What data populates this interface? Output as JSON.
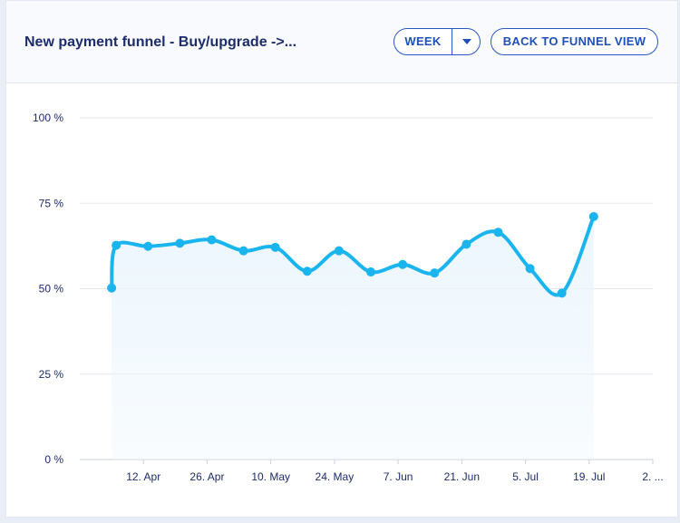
{
  "header": {
    "title": "New payment funnel - Buy/upgrade ->...",
    "period_select": {
      "value": "WEEK"
    },
    "back_button_label": "BACK TO FUNNEL VIEW"
  },
  "colors": {
    "line": "#1ab4ee",
    "area_fill": "#ecf6fd",
    "grid": "#e3e7ee",
    "axis_text": "#1d2c6b",
    "button": "#1f4fb8"
  },
  "chart_data": {
    "type": "line",
    "title": "",
    "xlabel": "",
    "ylabel": "",
    "ylim": [
      0,
      100
    ],
    "y_ticks": [
      {
        "value": 0,
        "label": "0 %"
      },
      {
        "value": 25,
        "label": "25 %"
      },
      {
        "value": 50,
        "label": "50 %"
      },
      {
        "value": 75,
        "label": "75 %"
      },
      {
        "value": 100,
        "label": "100 %"
      }
    ],
    "x_range": [
      "2021-03-29",
      "2021-08-02"
    ],
    "x_ticks": [
      {
        "date": "2021-04-12",
        "label": "12. Apr"
      },
      {
        "date": "2021-04-26",
        "label": "26. Apr"
      },
      {
        "date": "2021-05-10",
        "label": "10. May"
      },
      {
        "date": "2021-05-24",
        "label": "24. May"
      },
      {
        "date": "2021-06-07",
        "label": "7. Jun"
      },
      {
        "date": "2021-06-21",
        "label": "21. Jun"
      },
      {
        "date": "2021-07-05",
        "label": "5. Jul"
      },
      {
        "date": "2021-07-19",
        "label": "19. Jul"
      },
      {
        "date": "2021-08-02",
        "label": "2. ..."
      }
    ],
    "grid": true,
    "area_fill": true,
    "series": [
      {
        "points": [
          {
            "x": "2021-04-05",
            "y": 50.2
          },
          {
            "x": "2021-04-06",
            "y": 62.7
          },
          {
            "x": "2021-04-13",
            "y": 62.4
          },
          {
            "x": "2021-04-20",
            "y": 63.3
          },
          {
            "x": "2021-04-27",
            "y": 64.3
          },
          {
            "x": "2021-05-04",
            "y": 61.1
          },
          {
            "x": "2021-05-11",
            "y": 62.1
          },
          {
            "x": "2021-05-18",
            "y": 55.1
          },
          {
            "x": "2021-05-25",
            "y": 61.1
          },
          {
            "x": "2021-06-01",
            "y": 54.9
          },
          {
            "x": "2021-06-08",
            "y": 57.1
          },
          {
            "x": "2021-06-15",
            "y": 54.6
          },
          {
            "x": "2021-06-22",
            "y": 63.0
          },
          {
            "x": "2021-06-29",
            "y": 66.5
          },
          {
            "x": "2021-07-06",
            "y": 55.9
          },
          {
            "x": "2021-07-13",
            "y": 48.7
          },
          {
            "x": "2021-07-20",
            "y": 71.1
          }
        ]
      }
    ]
  }
}
